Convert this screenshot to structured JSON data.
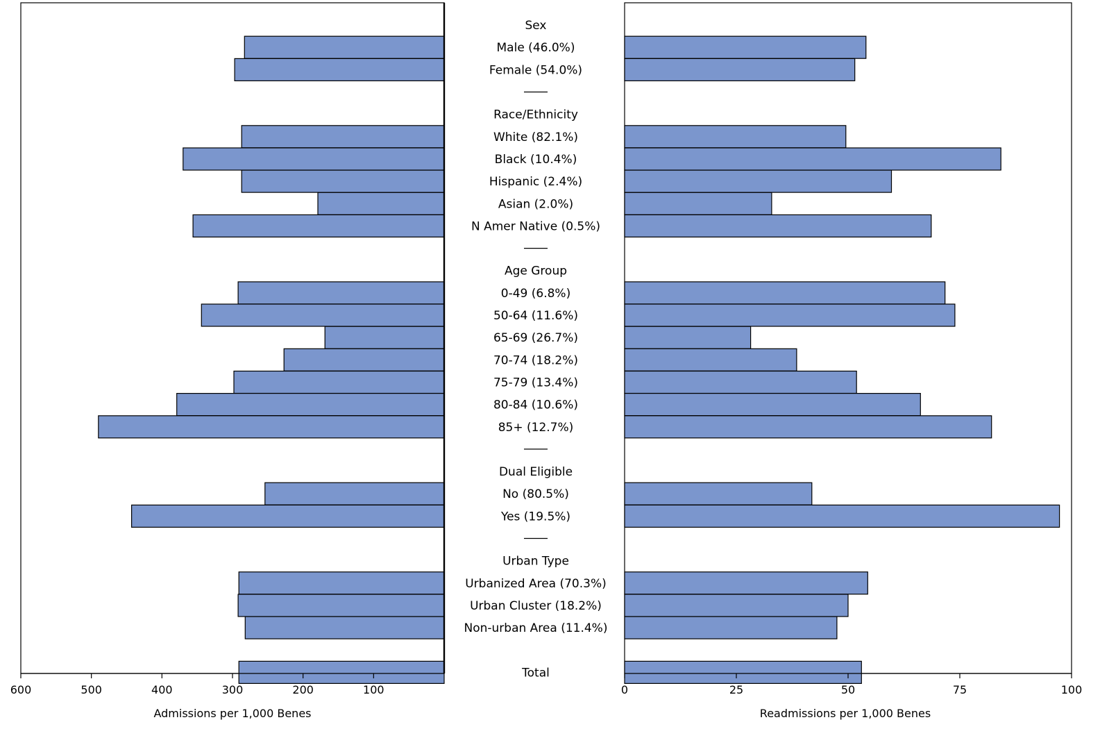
{
  "chart_data": [
    {
      "type": "bar",
      "orientation": "horizontal",
      "direction": "right-to-left",
      "xlabel": "Admissions per 1,000 Benes",
      "xlim": [
        0,
        600
      ],
      "xticks": [
        "600",
        "500",
        "400",
        "300",
        "200",
        "100"
      ],
      "xtick_values": [
        600,
        500,
        400,
        300,
        200,
        100
      ],
      "categories": [
        "Male (46.0%)",
        "Female (54.0%)",
        "White (82.1%)",
        "Black (10.4%)",
        "Hispanic (2.4%)",
        "Asian (2.0%)",
        "N Amer Native (0.5%)",
        "0-49 (6.8%)",
        "50-64 (11.6%)",
        "65-69 (26.7%)",
        "70-74 (18.2%)",
        "75-79 (13.4%)",
        "80-84 (10.6%)",
        "85+ (12.7%)",
        "No (80.5%)",
        "Yes (19.5%)",
        "Urbanized Area (70.3%)",
        "Urban Cluster (18.2%)",
        "Non-urban Area (11.4%)",
        "Total"
      ],
      "values": [
        283,
        297,
        287,
        370,
        287,
        179,
        356,
        292,
        344,
        169,
        227,
        298,
        379,
        490,
        254,
        443,
        291,
        292,
        282,
        291
      ]
    },
    {
      "type": "bar",
      "orientation": "horizontal",
      "direction": "left-to-right",
      "xlabel": "Readmissions per 1,000 Benes",
      "xlim": [
        0,
        100
      ],
      "xticks": [
        "0",
        "25",
        "50",
        "75",
        "100"
      ],
      "xtick_values": [
        0,
        25,
        50,
        75,
        100
      ],
      "categories": [
        "Male (46.0%)",
        "Female (54.0%)",
        "White (82.1%)",
        "Black (10.4%)",
        "Hispanic (2.4%)",
        "Asian (2.0%)",
        "N Amer Native (0.5%)",
        "0-49 (6.8%)",
        "50-64 (11.6%)",
        "65-69 (26.7%)",
        "70-74 (18.2%)",
        "75-79 (13.4%)",
        "80-84 (10.6%)",
        "85+ (12.7%)",
        "No (80.5%)",
        "Yes (19.5%)",
        "Urbanized Area (70.3%)",
        "Urban Cluster (18.2%)",
        "Non-urban Area (11.4%)",
        "Total"
      ],
      "values": [
        54,
        51.5,
        49.5,
        84.2,
        59.7,
        32.9,
        68.6,
        71.7,
        73.9,
        28.2,
        38.5,
        51.9,
        66.2,
        82.1,
        41.9,
        97.3,
        54.4,
        50,
        47.5,
        53
      ]
    }
  ],
  "rows": [
    {
      "kind": "header",
      "label": "Sex"
    },
    {
      "kind": "bar",
      "idx": 0
    },
    {
      "kind": "bar",
      "idx": 1
    },
    {
      "kind": "sep",
      "label": "——"
    },
    {
      "kind": "header",
      "label": "Race/Ethnicity"
    },
    {
      "kind": "bar",
      "idx": 2
    },
    {
      "kind": "bar",
      "idx": 3
    },
    {
      "kind": "bar",
      "idx": 4
    },
    {
      "kind": "bar",
      "idx": 5
    },
    {
      "kind": "bar",
      "idx": 6
    },
    {
      "kind": "sep",
      "label": "——"
    },
    {
      "kind": "header",
      "label": "Age Group"
    },
    {
      "kind": "bar",
      "idx": 7
    },
    {
      "kind": "bar",
      "idx": 8
    },
    {
      "kind": "bar",
      "idx": 9
    },
    {
      "kind": "bar",
      "idx": 10
    },
    {
      "kind": "bar",
      "idx": 11
    },
    {
      "kind": "bar",
      "idx": 12
    },
    {
      "kind": "bar",
      "idx": 13
    },
    {
      "kind": "sep",
      "label": "——"
    },
    {
      "kind": "header",
      "label": "Dual Eligible"
    },
    {
      "kind": "bar",
      "idx": 14
    },
    {
      "kind": "bar",
      "idx": 15
    },
    {
      "kind": "sep",
      "label": "——"
    },
    {
      "kind": "header",
      "label": "Urban Type"
    },
    {
      "kind": "bar",
      "idx": 16
    },
    {
      "kind": "bar",
      "idx": 17
    },
    {
      "kind": "bar",
      "idx": 18
    },
    {
      "kind": "blank",
      "label": ""
    },
    {
      "kind": "bar",
      "idx": 19
    }
  ],
  "colors": {
    "bar_fill": "#7B96CD",
    "bar_stroke": "#000000"
  }
}
